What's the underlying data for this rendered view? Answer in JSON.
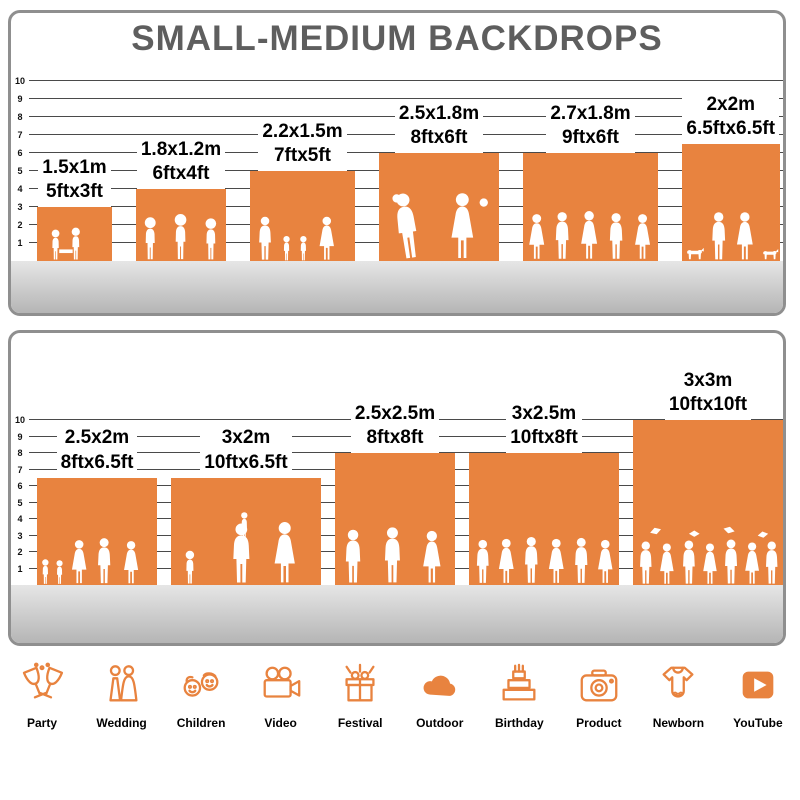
{
  "colors": {
    "accent": "#E8833F",
    "title": "#5E5E5E",
    "silhouette": "#FFFFFF",
    "ground": "#C6C6C6"
  },
  "header": {
    "title": "SMALL-MEDIUM BACKDROPS"
  },
  "chart_data": [
    {
      "type": "bar",
      "title": "SMALL-MEDIUM BACKDROPS",
      "ylabel": "ft",
      "ylim": [
        0,
        10
      ],
      "yticks": [
        1,
        2,
        3,
        4,
        5,
        6,
        7,
        8,
        9,
        10
      ],
      "items": [
        {
          "m": "1.5x1m",
          "ft": "5ftx3ft",
          "w": 5,
          "h": 3,
          "scene": "kids-reading"
        },
        {
          "m": "1.8x1.2m",
          "ft": "6ftx4ft",
          "w": 6,
          "h": 4,
          "scene": "kids-running"
        },
        {
          "m": "2.2x1.5m",
          "ft": "7ftx5ft",
          "w": 7,
          "h": 5,
          "scene": "family-holding-hands"
        },
        {
          "m": "2.5x1.8m",
          "ft": "8ftx6ft",
          "w": 8,
          "h": 6,
          "scene": "wedding-couple"
        },
        {
          "m": "2.7x1.8m",
          "ft": "9ftx6ft",
          "w": 9,
          "h": 6,
          "scene": "party-group"
        },
        {
          "m": "2x2m",
          "ft": "6.5ftx6.5ft",
          "w": 6.5,
          "h": 6.5,
          "scene": "couple-with-dogs"
        }
      ]
    },
    {
      "type": "bar",
      "title": "",
      "ylabel": "ft",
      "ylim": [
        0,
        10
      ],
      "yticks": [
        1,
        2,
        3,
        4,
        5,
        6,
        7,
        8,
        9,
        10
      ],
      "items": [
        {
          "m": "2.5x2m",
          "ft": "8ftx6.5ft",
          "w": 8,
          "h": 6.5,
          "scene": "family-group"
        },
        {
          "m": "3x2m",
          "ft": "10ftx6.5ft",
          "w": 10,
          "h": 6.5,
          "scene": "parent-lifting-child"
        },
        {
          "m": "2.5x2.5m",
          "ft": "8ftx8ft",
          "w": 8,
          "h": 8,
          "scene": "standing-group"
        },
        {
          "m": "3x2.5m",
          "ft": "10ftx8ft",
          "w": 10,
          "h": 8,
          "scene": "large-group"
        },
        {
          "m": "3x3m",
          "ft": "10ftx10ft",
          "w": 10,
          "h": 10,
          "scene": "graduation-crowd"
        }
      ]
    }
  ],
  "categories": [
    {
      "label": "Party",
      "icon": "party-icon"
    },
    {
      "label": "Wedding",
      "icon": "wedding-icon"
    },
    {
      "label": "Children",
      "icon": "children-icon"
    },
    {
      "label": "Video",
      "icon": "video-icon"
    },
    {
      "label": "Festival",
      "icon": "festival-icon"
    },
    {
      "label": "Outdoor",
      "icon": "outdoor-icon"
    },
    {
      "label": "Birthday",
      "icon": "birthday-icon"
    },
    {
      "label": "Product",
      "icon": "product-icon"
    },
    {
      "label": "Newborn",
      "icon": "newborn-icon"
    },
    {
      "label": "YouTube",
      "icon": "youtube-icon"
    }
  ]
}
